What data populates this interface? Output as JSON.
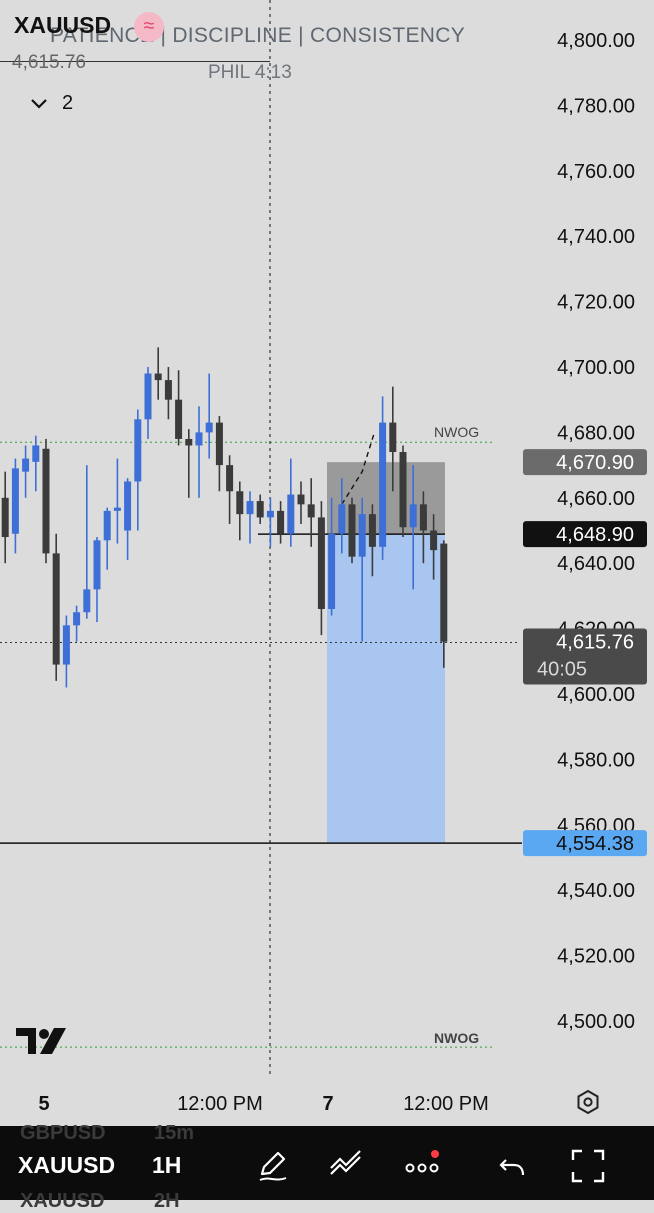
{
  "header": {
    "symbol": "XAUUSD",
    "watermark": "PATIENCE | DISCIPLINE | CONSISTENCY",
    "verse": "PHIL 4:13",
    "last_price": "4,615.76",
    "collapse_count": "2"
  },
  "price_axis": {
    "ticks": [
      "4,800.00",
      "4,780.00",
      "4,760.00",
      "4,740.00",
      "4,720.00",
      "4,700.00",
      "4,680.00",
      "4,660.00",
      "4,640.00",
      "4,620.00",
      "4,600.00",
      "4,580.00",
      "4,560.00",
      "4,540.00",
      "4,520.00",
      "4,500.00"
    ],
    "tick_values": [
      4800,
      4780,
      4760,
      4740,
      4720,
      4700,
      4680,
      4660,
      4640,
      4620,
      4600,
      4580,
      4560,
      4540,
      4520,
      4500
    ],
    "labels": [
      {
        "text": "4,670.90",
        "value": 4670.9,
        "bg": "#6b6b6b",
        "fg": "#ffffff"
      },
      {
        "text": "4,648.90",
        "value": 4648.9,
        "bg": "#111111",
        "fg": "#ffffff"
      },
      {
        "text": "4,615.76",
        "value": 4615.76,
        "bg": "#4a4a4a",
        "fg": "#ffffff",
        "sub": "40:05"
      },
      {
        "text": "4,554.38",
        "value": 4554.38,
        "bg": "#5aa7f2",
        "fg": "#111111"
      }
    ]
  },
  "time_axis": {
    "labels": [
      {
        "text": "5",
        "bold": true
      },
      {
        "text": "12:00 PM",
        "bold": false
      },
      {
        "text": "7",
        "bold": true
      },
      {
        "text": "12:00 PM",
        "bold": false
      }
    ]
  },
  "annotations": {
    "nwog_top": "NWOG",
    "nwog_bottom": "NWOG"
  },
  "colors": {
    "bull": "#3d6fd6",
    "bear": "#3b3b3b",
    "target_zone": "#a8c6ef",
    "stop_zone": "#9a9a9a",
    "nwog_line": "#2e9e3a"
  },
  "chart_data": {
    "type": "candlestick",
    "price_range": [
      4490,
      4808
    ],
    "candles": [
      {
        "o": 4660,
        "h": 4668,
        "l": 4640,
        "c": 4648
      },
      {
        "o": 4649,
        "h": 4672,
        "l": 4643,
        "c": 4669
      },
      {
        "o": 4668,
        "h": 4676,
        "l": 4660,
        "c": 4672
      },
      {
        "o": 4671,
        "h": 4679,
        "l": 4662,
        "c": 4676
      },
      {
        "o": 4675,
        "h": 4678,
        "l": 4640,
        "c": 4643
      },
      {
        "o": 4643,
        "h": 4649,
        "l": 4604,
        "c": 4609
      },
      {
        "o": 4609,
        "h": 4624,
        "l": 4602,
        "c": 4621
      },
      {
        "o": 4621,
        "h": 4627,
        "l": 4616,
        "c": 4625
      },
      {
        "o": 4625,
        "h": 4670,
        "l": 4623,
        "c": 4632
      },
      {
        "o": 4632,
        "h": 4648,
        "l": 4622,
        "c": 4647
      },
      {
        "o": 4647,
        "h": 4657,
        "l": 4638,
        "c": 4656
      },
      {
        "o": 4656,
        "h": 4672,
        "l": 4646,
        "c": 4657
      },
      {
        "o": 4650,
        "h": 4666,
        "l": 4641,
        "c": 4665
      },
      {
        "o": 4665,
        "h": 4687,
        "l": 4650,
        "c": 4684
      },
      {
        "o": 4684,
        "h": 4700,
        "l": 4678,
        "c": 4698
      },
      {
        "o": 4698,
        "h": 4706,
        "l": 4690,
        "c": 4696
      },
      {
        "o": 4696,
        "h": 4700,
        "l": 4684,
        "c": 4690
      },
      {
        "o": 4690,
        "h": 4699,
        "l": 4676,
        "c": 4678
      },
      {
        "o": 4678,
        "h": 4681,
        "l": 4660,
        "c": 4676
      },
      {
        "o": 4676,
        "h": 4688,
        "l": 4660,
        "c": 4680
      },
      {
        "o": 4680,
        "h": 4698,
        "l": 4672,
        "c": 4683
      },
      {
        "o": 4683,
        "h": 4685,
        "l": 4662,
        "c": 4670
      },
      {
        "o": 4670,
        "h": 4673,
        "l": 4652,
        "c": 4662
      },
      {
        "o": 4662,
        "h": 4665,
        "l": 4647,
        "c": 4655
      },
      {
        "o": 4655,
        "h": 4662,
        "l": 4646,
        "c": 4659
      },
      {
        "o": 4659,
        "h": 4661,
        "l": 4652,
        "c": 4654
      },
      {
        "o": 4654,
        "h": 4660,
        "l": 4645,
        "c": 4656
      },
      {
        "o": 4656,
        "h": 4659,
        "l": 4646,
        "c": 4649
      },
      {
        "o": 4649,
        "h": 4672,
        "l": 4645,
        "c": 4661
      },
      {
        "o": 4661,
        "h": 4665,
        "l": 4652,
        "c": 4658
      },
      {
        "o": 4658,
        "h": 4666,
        "l": 4645,
        "c": 4654
      },
      {
        "o": 4654,
        "h": 4659,
        "l": 4618,
        "c": 4626
      },
      {
        "o": 4626,
        "h": 4660,
        "l": 4624,
        "c": 4649
      },
      {
        "o": 4649,
        "h": 4666,
        "l": 4643,
        "c": 4658
      },
      {
        "o": 4658,
        "h": 4660,
        "l": 4640,
        "c": 4642
      },
      {
        "o": 4642,
        "h": 4660,
        "l": 4616,
        "c": 4655
      },
      {
        "o": 4655,
        "h": 4658,
        "l": 4636,
        "c": 4645
      },
      {
        "o": 4645,
        "h": 4691,
        "l": 4641,
        "c": 4683
      },
      {
        "o": 4683,
        "h": 4694,
        "l": 4662,
        "c": 4674
      },
      {
        "o": 4674,
        "h": 4676,
        "l": 4648,
        "c": 4651
      },
      {
        "o": 4651,
        "h": 4670,
        "l": 4632,
        "c": 4658
      },
      {
        "o": 4658,
        "h": 4662,
        "l": 4640,
        "c": 4650
      },
      {
        "o": 4650,
        "h": 4655,
        "l": 4635,
        "c": 4644
      },
      {
        "o": 4646,
        "h": 4647,
        "l": 4608,
        "c": 4616
      }
    ],
    "levels": {
      "nwog_upper": 4677,
      "nwog_lower": 4492,
      "crosshair_price": 4615.76,
      "entry": 4648.9,
      "stop": 4670.9,
      "target": 4554.38
    }
  },
  "toolbar": {
    "symbol": "XAUUSD",
    "timeframe": "1H",
    "ghost_symbol_1": "GBPUSD",
    "ghost_tf_1": "15m",
    "ghost_symbol_2": "XAUUSD",
    "ghost_tf_2": "2H",
    "icons": [
      "pencil-icon",
      "drawing-tools-icon",
      "more-dots-icon",
      "undo-icon",
      "fullscreen-icon"
    ]
  }
}
